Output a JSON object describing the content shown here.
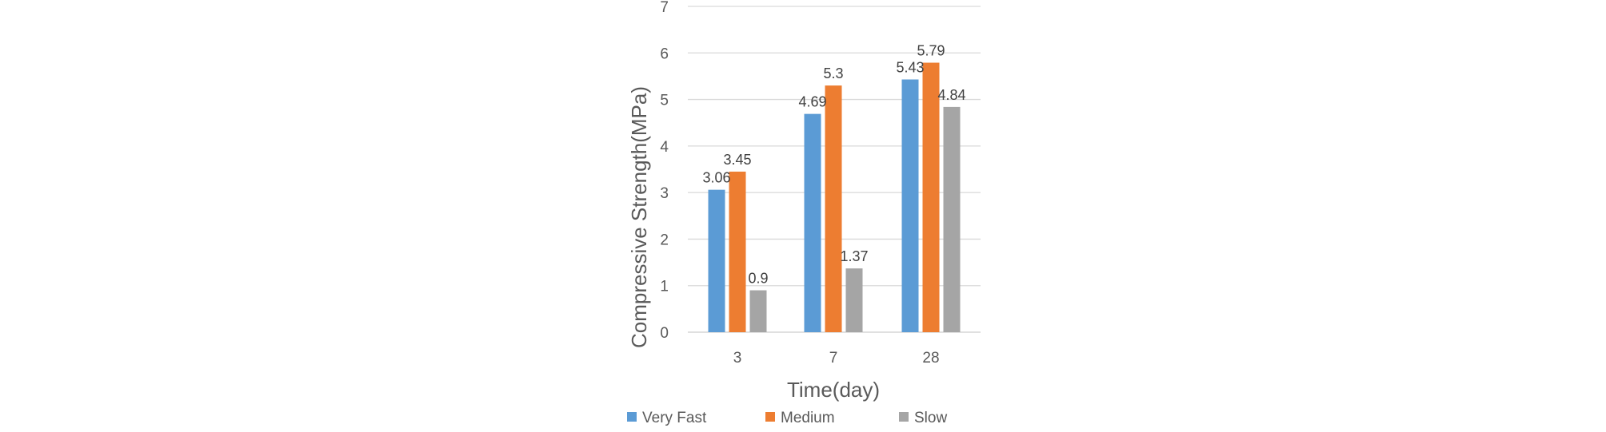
{
  "chart_data": {
    "type": "bar",
    "title": "",
    "xlabel": "Time(day)",
    "ylabel": "Compressive Strength(MPa)",
    "categories": [
      "3",
      "7",
      "28"
    ],
    "ylim": [
      0,
      7
    ],
    "yticks": [
      0,
      1,
      2,
      3,
      4,
      5,
      6,
      7
    ],
    "grid": true,
    "legend_position": "bottom",
    "series": [
      {
        "name": "Very Fast",
        "color": "#5B9BD5",
        "values": [
          3.06,
          4.69,
          5.43
        ],
        "labels": [
          "3.06",
          "4.69",
          "5.43"
        ]
      },
      {
        "name": "Medium",
        "color": "#ED7D31",
        "values": [
          3.45,
          5.3,
          5.79
        ],
        "labels": [
          "3.45",
          "5.3",
          "5.79"
        ]
      },
      {
        "name": "Slow",
        "color": "#A5A5A5",
        "values": [
          0.9,
          1.37,
          4.84
        ],
        "labels": [
          "0.9",
          "1.37",
          "4.84"
        ]
      }
    ]
  }
}
